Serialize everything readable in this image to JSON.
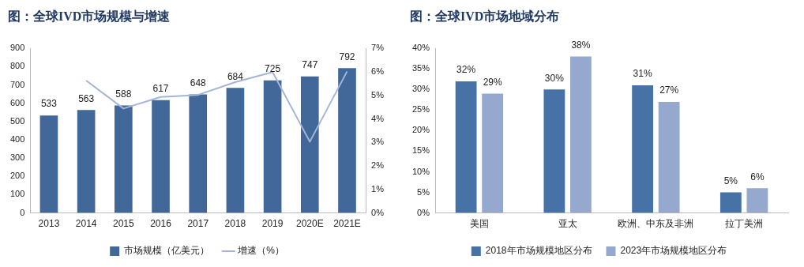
{
  "chart_data": [
    {
      "type": "bar",
      "title": "图：全球IVD市场规模与增速",
      "categories": [
        "2013",
        "2014",
        "2015",
        "2016",
        "2017",
        "2018",
        "2019",
        "2020E",
        "2021E"
      ],
      "series": [
        {
          "name": "市场规模（亿美元）",
          "color": "#416898",
          "values": [
            533,
            563,
            588,
            617,
            648,
            684,
            725,
            747,
            792
          ],
          "value_labels": [
            "533",
            "563",
            "588",
            "617",
            "648",
            "684",
            "725",
            "747",
            "792"
          ]
        },
        {
          "name": "增速（%）",
          "type": "line",
          "axis": "y2",
          "color": "#a3b6d8",
          "marker": "none",
          "values": [
            null,
            5.63,
            4.44,
            4.93,
            5.02,
            5.56,
            5.99,
            3.03,
            6.02
          ]
        }
      ],
      "ylim": [
        0,
        900
      ],
      "yticks": [
        0,
        100,
        200,
        300,
        400,
        500,
        600,
        700,
        800,
        900
      ],
      "y2lim": [
        0,
        7
      ],
      "y2ticks": [
        {
          "value": 0,
          "label": "0%"
        },
        {
          "value": 1,
          "label": "1%"
        },
        {
          "value": 2,
          "label": "2%"
        },
        {
          "value": 3,
          "label": "3%"
        },
        {
          "value": 4,
          "label": "4%"
        },
        {
          "value": 5,
          "label": "5%"
        },
        {
          "value": 6,
          "label": "6%"
        },
        {
          "value": 7,
          "label": "7%"
        }
      ],
      "grid": false,
      "legend": "bottom"
    },
    {
      "type": "bar",
      "title": "图：全球IVD市场地域分布",
      "categories": [
        "美国",
        "亚太",
        "欧洲、中东及非洲",
        "拉丁美洲"
      ],
      "series": [
        {
          "name": "2018年市场规模地区分布",
          "color": "#4672a6",
          "values": [
            32,
            30,
            31,
            5
          ],
          "value_labels": [
            "32%",
            "30%",
            "31%",
            "5%"
          ]
        },
        {
          "name": "2023年市场规模地区分布",
          "color": "#95a9cf",
          "values": [
            29,
            38,
            27,
            6
          ],
          "value_labels": [
            "29%",
            "38%",
            "27%",
            "6%"
          ]
        }
      ],
      "ylim": [
        0,
        40
      ],
      "yticks": [
        {
          "value": 0,
          "label": "0%"
        },
        {
          "value": 5,
          "label": "5%"
        },
        {
          "value": 10,
          "label": "10%"
        },
        {
          "value": 15,
          "label": "15%"
        },
        {
          "value": 20,
          "label": "20%"
        },
        {
          "value": 25,
          "label": "25%"
        },
        {
          "value": 30,
          "label": "30%"
        },
        {
          "value": 35,
          "label": "35%"
        },
        {
          "value": 40,
          "label": "40%"
        }
      ],
      "grid": false,
      "legend": "bottom"
    }
  ]
}
